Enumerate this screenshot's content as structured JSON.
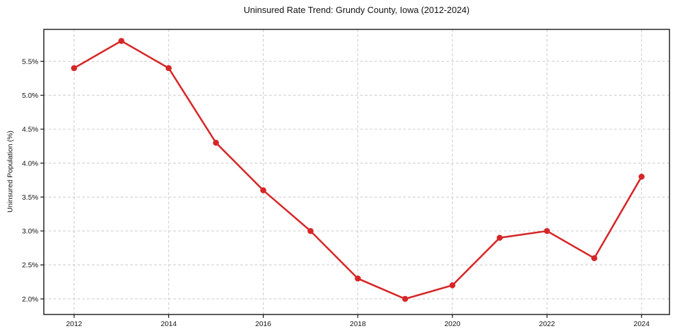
{
  "chart_data": {
    "type": "line",
    "title": "Uninsured Rate Trend: Grundy County, Iowa (2012-2024)",
    "xlabel": "",
    "ylabel": "Uninsured Population (%)",
    "x": [
      2012,
      2013,
      2014,
      2015,
      2016,
      2017,
      2018,
      2019,
      2020,
      2021,
      2022,
      2023,
      2024
    ],
    "series": [
      {
        "name": "Uninsured Population (%)",
        "values": [
          5.4,
          5.8,
          5.4,
          4.3,
          3.6,
          3.0,
          2.3,
          2.0,
          2.2,
          2.9,
          3.0,
          2.6,
          3.8
        ],
        "color": "#d62728",
        "marker": "circle"
      }
    ],
    "xlim": [
      2011.36,
      2024.59
    ],
    "ylim": [
      1.77,
      5.97
    ],
    "xticks": [
      {
        "value": 2012,
        "label": "2012"
      },
      {
        "value": 2014,
        "label": "2014"
      },
      {
        "value": 2016,
        "label": "2016"
      },
      {
        "value": 2018,
        "label": "2018"
      },
      {
        "value": 2020,
        "label": "2020"
      },
      {
        "value": 2022,
        "label": "2022"
      },
      {
        "value": 2024,
        "label": "2024"
      }
    ],
    "yticks": [
      {
        "value": 2.0,
        "label": "2.0%"
      },
      {
        "value": 2.5,
        "label": "2.5%"
      },
      {
        "value": 3.0,
        "label": "3.0%"
      },
      {
        "value": 3.5,
        "label": "3.5%"
      },
      {
        "value": 4.0,
        "label": "4.0%"
      },
      {
        "value": 4.5,
        "label": "4.5%"
      },
      {
        "value": 5.0,
        "label": "5.0%"
      },
      {
        "value": 5.5,
        "label": "5.5%"
      }
    ],
    "grid": true,
    "grid_style": "dashed",
    "grid_color": "#cccccc",
    "axis_color": "#000000",
    "text_color": "#111111",
    "background": "#ffffff",
    "legend_position": "none"
  }
}
